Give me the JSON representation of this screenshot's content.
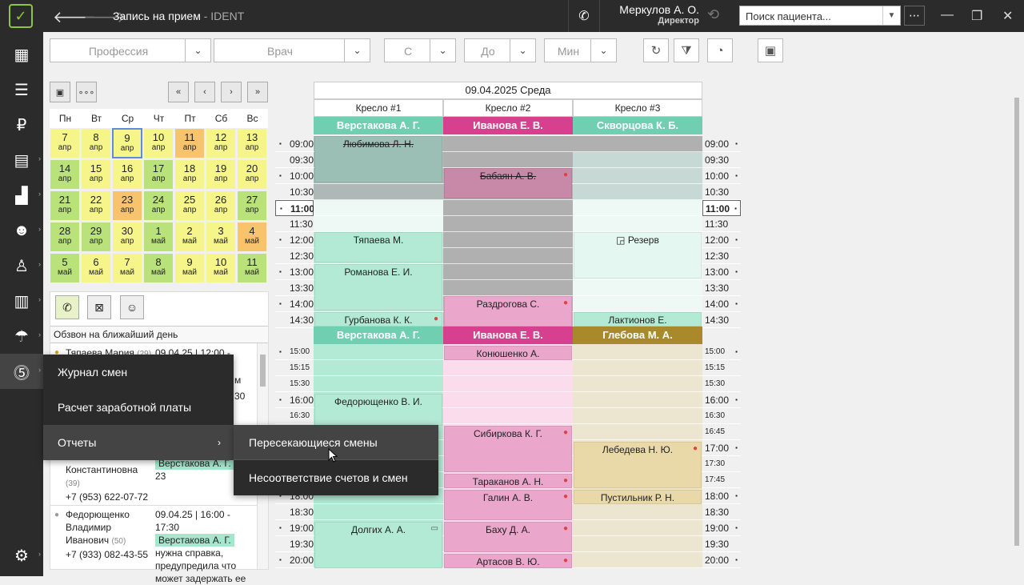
{
  "titlebar": {
    "title": "Запись на прием",
    "app": " - IDENT",
    "user_name": "Меркулов А. О.",
    "user_role": "Директор",
    "search_placeholder": "Поиск пациента..."
  },
  "filters": {
    "profession": "Профессия",
    "doctor": "Врач",
    "from": "С",
    "to": "До",
    "min": "Мин"
  },
  "calendar": {
    "dow": [
      "Пн",
      "Вт",
      "Ср",
      "Чт",
      "Пт",
      "Сб",
      "Вс"
    ],
    "weeks": [
      [
        [
          "7",
          "апр"
        ],
        [
          "8",
          "апр"
        ],
        [
          "9",
          "апр"
        ],
        [
          "10",
          "апр"
        ],
        [
          "11",
          "апр"
        ],
        [
          "12",
          "апр"
        ],
        [
          "13",
          "апр"
        ]
      ],
      [
        [
          "14",
          "апр"
        ],
        [
          "15",
          "апр"
        ],
        [
          "16",
          "апр"
        ],
        [
          "17",
          "апр"
        ],
        [
          "18",
          "апр"
        ],
        [
          "19",
          "апр"
        ],
        [
          "20",
          "апр"
        ]
      ],
      [
        [
          "21",
          "апр"
        ],
        [
          "22",
          "апр"
        ],
        [
          "23",
          "апр"
        ],
        [
          "24",
          "апр"
        ],
        [
          "25",
          "апр"
        ],
        [
          "26",
          "апр"
        ],
        [
          "27",
          "апр"
        ]
      ],
      [
        [
          "28",
          "апр"
        ],
        [
          "29",
          "апр"
        ],
        [
          "30",
          "апр"
        ],
        [
          "1",
          "май"
        ],
        [
          "2",
          "май"
        ],
        [
          "3",
          "май"
        ],
        [
          "4",
          "май"
        ]
      ],
      [
        [
          "5",
          "май"
        ],
        [
          "6",
          "май"
        ],
        [
          "7",
          "май"
        ],
        [
          "8",
          "май"
        ],
        [
          "9",
          "май"
        ],
        [
          "10",
          "май"
        ],
        [
          "11",
          "май"
        ]
      ]
    ]
  },
  "calls": {
    "header": "Обзвон на ближайший день",
    "row1": {
      "name": "Тяпаева Мария",
      "age": "(29)",
      "date": "09.04.25",
      "time": "12:00 - 13:00"
    },
    "row2": {
      "name_tail": "Константиновна",
      "age": "(39)",
      "phone": "+7 (953) 622-07-72",
      "doc": "Верстакова А. Г.",
      "num": "23"
    },
    "row3": {
      "name1": "Федорющенко",
      "name2": "Владимир",
      "name3": "Иванович",
      "age": "(50)",
      "phone": "+7 (933) 082-43-55",
      "date": "09.04.25",
      "time": "16:00 - 17:30",
      "doc": "Верстакова А. Г.",
      "note1": "нужна справка,",
      "note2": "предупредила что",
      "note3": "может задержать ее"
    },
    "partial1": "30",
    "partial2": "м"
  },
  "schedule": {
    "date": "09.04.2025 Среда",
    "chairs": [
      "Кресло #1",
      "Кресло #2",
      "Кресло #3"
    ],
    "doctors_top": [
      "Верстакова А. Г.",
      "Иванова Е. В.",
      "Скворцова К. Б."
    ],
    "doctors_bottom": [
      "Верстакова А. Г.",
      "Иванова Е. В.",
      "Глебова М. А."
    ],
    "times_top": [
      "09:00",
      "09:30",
      "10:00",
      "10:30",
      "11:00",
      "11:30",
      "12:00",
      "12:30",
      "13:00",
      "13:30",
      "14:00",
      "14:30"
    ],
    "times_bottom_left": [
      "15:00",
      "15:15",
      "15:30",
      "16:00",
      "16:30",
      "",
      "",
      "",
      "18:00",
      "18:30",
      "19:00",
      "19:30",
      "20:00"
    ],
    "times_bottom_right": [
      "15:00",
      "15:15",
      "15:30",
      "16:00",
      "16:30",
      "16:45",
      "17:00",
      "17:30",
      "17:45",
      "18:00",
      "18:30",
      "19:00",
      "19:30",
      "20:00"
    ],
    "appointments": {
      "a1": "Любимова Л. Н.",
      "a2": "Бабаян А. В.",
      "a3": "Тяпаева М.",
      "a4": "Резерв",
      "a5": "Романова Е. И.",
      "a6": "Раздрогова С.",
      "a7": "Гурбанова К. К.",
      "a8": "Лактионов Е.",
      "a9": "Конюшенко А.",
      "a10": "Федорющенко В. И.",
      "a11": "Сибиркова К. Г.",
      "a12": "Лебедева Н. Ю.",
      "a13": "Тараканов А. Н.",
      "a14": "Галин А. В.",
      "a15": "Пустильник Р. Н.",
      "a16": "Долгих А. А.",
      "a17": "Баху Д. А.",
      "a18": "Артасов В. Ю."
    }
  },
  "menu": {
    "item1": "Журнал смен",
    "item2": "Расчет заработной платы",
    "item3": "Отчеты",
    "sub1": "Пересекающиеся смены",
    "sub2": "Несоответствие счетов и смен"
  },
  "colors": {
    "green": "#6fcfb0",
    "pink": "#d6408f",
    "gold": "#a88a2a"
  }
}
